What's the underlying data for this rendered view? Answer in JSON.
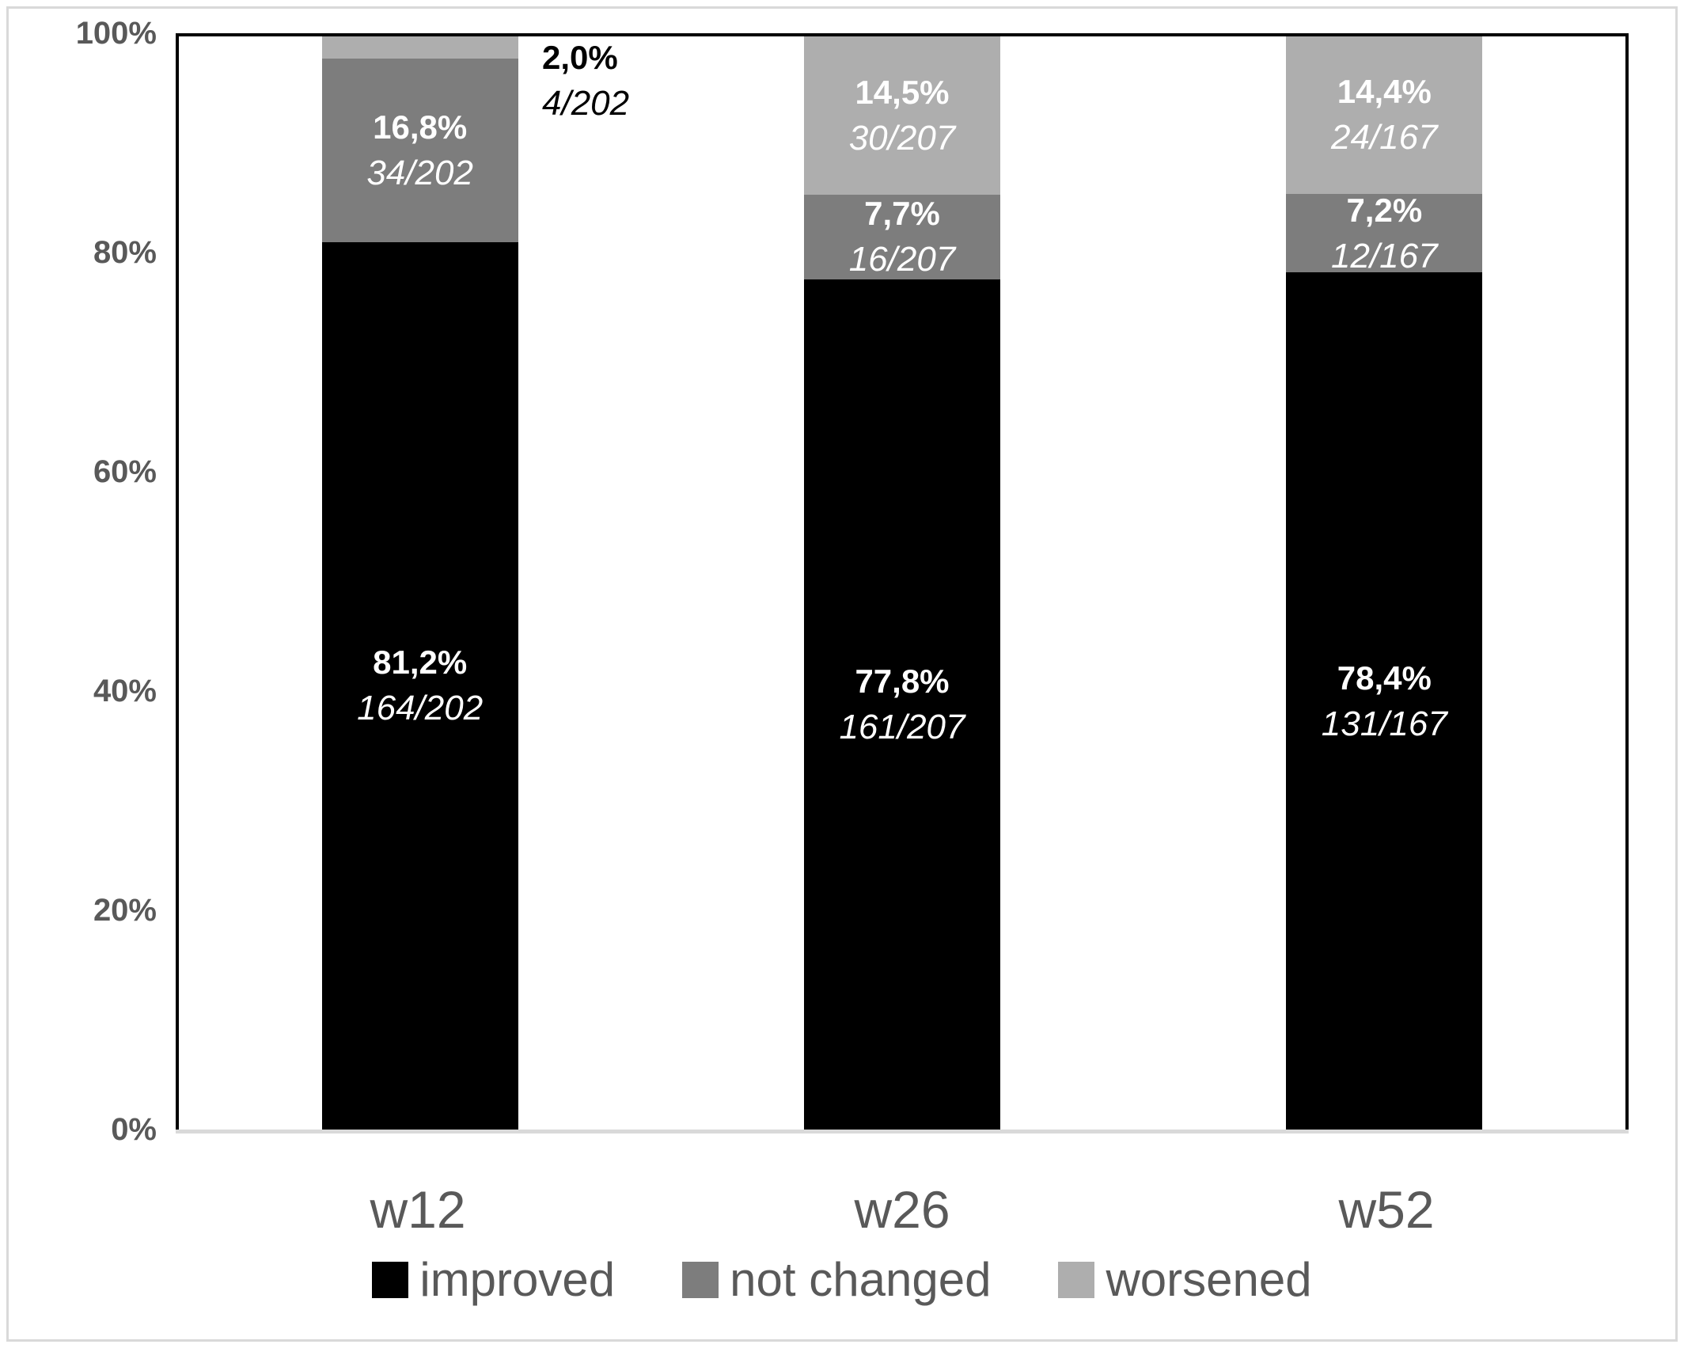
{
  "figure": {
    "background": "#ffffff",
    "frame_border_color": "#d9d9d9",
    "axis_line_color": "#000000",
    "baseline_color": "#d9d9d9",
    "axis_text_color": "#595959"
  },
  "chart_data": {
    "type": "bar",
    "subtype": "stacked-100-percent",
    "title": "",
    "xlabel": "",
    "ylabel": "",
    "ylim": [
      0,
      100
    ],
    "grid": false,
    "legend_position": "bottom",
    "y_ticks": [
      "100%",
      "80%",
      "60%",
      "40%",
      "20%",
      "0%"
    ],
    "categories": [
      "w12",
      "w26",
      "w52"
    ],
    "series": [
      {
        "name": "improved",
        "color": "#000000",
        "values": [
          81.2,
          77.8,
          78.4
        ],
        "counts": [
          "164/202",
          "161/207",
          "131/167"
        ]
      },
      {
        "name": "not changed",
        "color": "#7d7d7d",
        "values": [
          16.8,
          7.7,
          7.2
        ],
        "counts": [
          "34/202",
          "16/207",
          "12/167"
        ]
      },
      {
        "name": "worsened",
        "color": "#aeaeae",
        "values": [
          2.0,
          14.5,
          14.4
        ],
        "counts": [
          "4/202",
          "30/207",
          "24/167"
        ]
      }
    ],
    "bars": [
      {
        "category": "w12",
        "segments": [
          {
            "series": "worsened",
            "value": 2.0,
            "pct": "2,0%",
            "frac": "4/202",
            "color": "#aeaeae",
            "label_placement": "outside-right",
            "label_color": "#000000"
          },
          {
            "series": "not changed",
            "value": 16.8,
            "pct": "16,8%",
            "frac": "34/202",
            "color": "#7d7d7d",
            "label_placement": "inside",
            "label_color": "#ffffff"
          },
          {
            "series": "improved",
            "value": 81.2,
            "pct": "81,2%",
            "frac": "164/202",
            "color": "#000000",
            "label_placement": "inside",
            "label_color": "#ffffff"
          }
        ]
      },
      {
        "category": "w26",
        "segments": [
          {
            "series": "worsened",
            "value": 14.5,
            "pct": "14,5%",
            "frac": "30/207",
            "color": "#aeaeae",
            "label_placement": "inside",
            "label_color": "#ffffff"
          },
          {
            "series": "not changed",
            "value": 7.7,
            "pct": "7,7%",
            "frac": "16/207",
            "color": "#7d7d7d",
            "label_placement": "inside",
            "label_color": "#ffffff"
          },
          {
            "series": "improved",
            "value": 77.8,
            "pct": "77,8%",
            "frac": "161/207",
            "color": "#000000",
            "label_placement": "inside",
            "label_color": "#ffffff"
          }
        ]
      },
      {
        "category": "w52",
        "segments": [
          {
            "series": "worsened",
            "value": 14.4,
            "pct": "14,4%",
            "frac": "24/167",
            "color": "#aeaeae",
            "label_placement": "inside",
            "label_color": "#ffffff"
          },
          {
            "series": "not changed",
            "value": 7.2,
            "pct": "7,2%",
            "frac": "12/167",
            "color": "#7d7d7d",
            "label_placement": "inside",
            "label_color": "#ffffff"
          },
          {
            "series": "improved",
            "value": 78.4,
            "pct": "78,4%",
            "frac": "131/167",
            "color": "#000000",
            "label_placement": "inside",
            "label_color": "#ffffff"
          }
        ]
      }
    ],
    "legend": [
      {
        "label": "improved",
        "color": "#000000"
      },
      {
        "label": "not changed",
        "color": "#7d7d7d"
      },
      {
        "label": "worsened",
        "color": "#aeaeae"
      }
    ]
  }
}
